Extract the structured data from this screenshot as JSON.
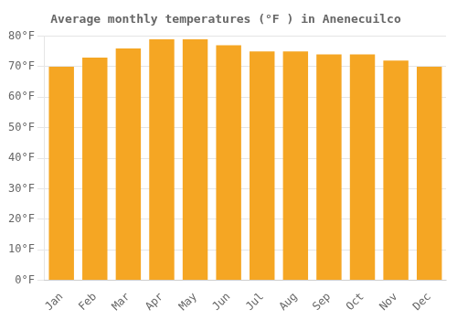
{
  "chart_data": {
    "type": "bar",
    "title": "Average monthly temperatures (°F ) in Anenecuilco",
    "categories": [
      "Jan",
      "Feb",
      "Mar",
      "Apr",
      "May",
      "Jun",
      "Jul",
      "Aug",
      "Sep",
      "Oct",
      "Nov",
      "Dec"
    ],
    "values": [
      70,
      73,
      76,
      79,
      79,
      77,
      75,
      75,
      74,
      74,
      72,
      70
    ],
    "color": "#F5A623",
    "ylim": [
      0,
      80
    ],
    "yticks": [
      {
        "value": 0,
        "label": "0°F"
      },
      {
        "value": 10,
        "label": "10°F"
      },
      {
        "value": 20,
        "label": "20°F"
      },
      {
        "value": 30,
        "label": "30°F"
      },
      {
        "value": 40,
        "label": "40°F"
      },
      {
        "value": 50,
        "label": "50°F"
      },
      {
        "value": 60,
        "label": "60°F"
      },
      {
        "value": 70,
        "label": "70°F"
      },
      {
        "value": 80,
        "label": "80°F"
      }
    ],
    "grid": true
  }
}
